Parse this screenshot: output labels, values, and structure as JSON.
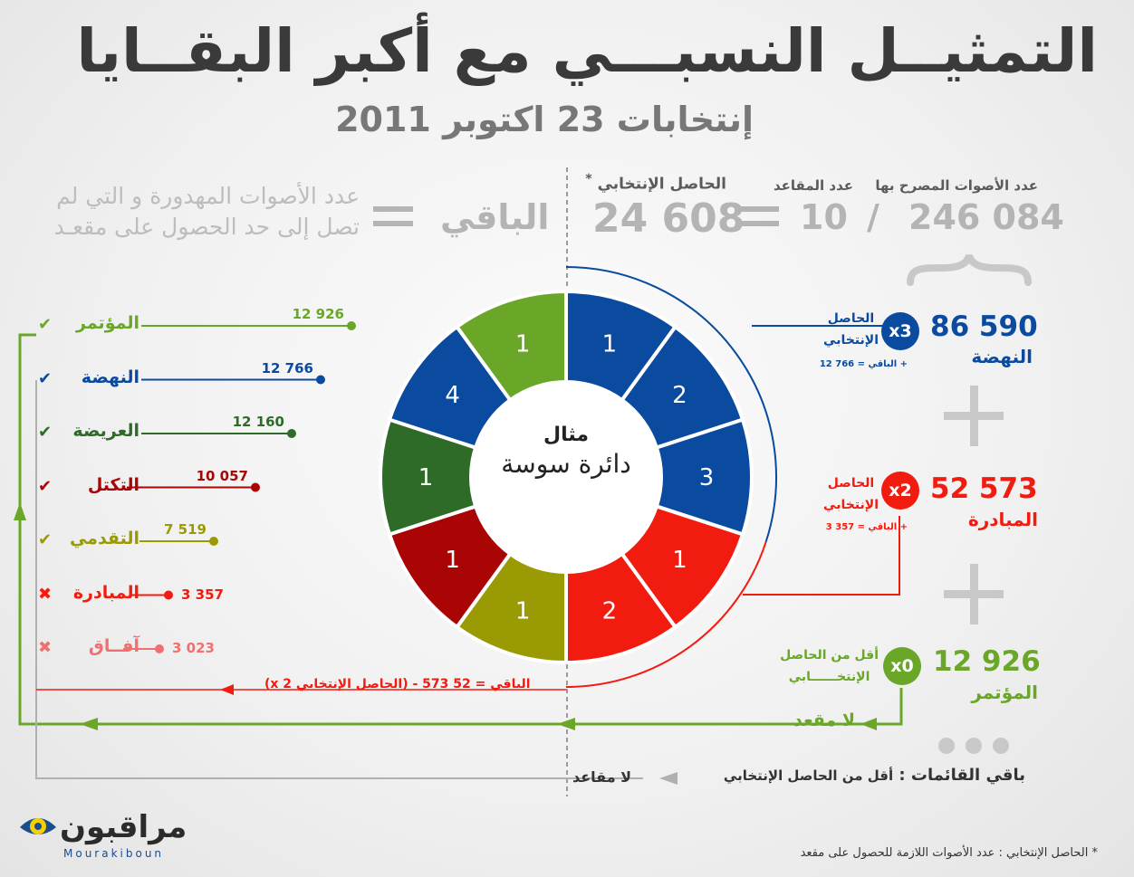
{
  "header": {
    "title": "التمثيــل النسبـــي مع أكبر البقــايا",
    "subtitle": "إنتخابات 23 اكتوبر 2011"
  },
  "formula": {
    "votes_label": "عدد الأصوات المصرح بها",
    "votes_value": "246 084",
    "divide": "/",
    "seats_label": "عدد المقاعد",
    "seats_value": "10",
    "equals": "=",
    "quota_label": "الحاصل الإنتخابي",
    "quota_star": "*",
    "quota_value": "24 608",
    "remainder_label": "الباقي",
    "wasted_line1": "عدد الأصوات المهدورة و التي لم",
    "wasted_line2": "تصل إلى حد الحصول على مقعـد"
  },
  "center": {
    "example": "مثال",
    "district": "دائرة سوسة"
  },
  "colors": {
    "nahda": "#0a4a9f",
    "moubadara": "#f21b0f",
    "moutamar": "#6aa628",
    "aridha": "#2e6a28",
    "takatol": "#aa0505",
    "takadoumi": "#9a9a05",
    "afek": "#f07070"
  },
  "right_parties": [
    {
      "votes": "86 590",
      "name": "النهضة",
      "multiplier": "x3",
      "quota_line1": "الحاصل",
      "quota_line2": "الإنتخابي",
      "remainder_note": "+ الباقي = 766 12"
    },
    {
      "votes": "52 573",
      "name": "المبادرة",
      "multiplier": "x2",
      "quota_line1": "الحاصل",
      "quota_line2": "الإنتخابي",
      "remainder_note": "+ الباقي = 357 3"
    },
    {
      "votes": "12 926",
      "name": "المؤتمر",
      "multiplier": "x0",
      "quota_line1": "أقل من الحاصل",
      "quota_line2": "الإنتخــــــابي",
      "no_seat": "لا مقعد"
    }
  ],
  "plus": "+",
  "ellipsis": "•••",
  "left_ranking": [
    {
      "name": "المؤتمر",
      "value": "12 926",
      "mark": "✔"
    },
    {
      "name": "النهضة",
      "value": "12 766",
      "mark": "✔"
    },
    {
      "name": "العريضة",
      "value": "12 160",
      "mark": "✔"
    },
    {
      "name": "التكتل",
      "value": "10 057",
      "mark": "✔"
    },
    {
      "name": "التقدمي",
      "value": "7 519",
      "mark": "✔"
    },
    {
      "name": "المبادرة",
      "value": "3 357",
      "mark": "✖"
    },
    {
      "name": "آفــاق",
      "value": "3 023",
      "mark": "✖"
    }
  ],
  "calc_note": {
    "label": "الباقي =",
    "value": "52 573",
    "rest": "- (الحاصل الإنتخابي x 2)"
  },
  "remaining_lists": {
    "label": "باقي القائمات",
    "colon": ":",
    "condition": "أقل من الحاصل الإنتخابي",
    "result": "لا مقاعد"
  },
  "footnote": "* الحاصل الإنتخابي : عدد الأصوات اللازمة للحصول على مقعد",
  "logo": {
    "name": "مراقبون",
    "latin": "Mourakiboun"
  },
  "chart_data": {
    "type": "pie",
    "title": "دائرة سوسة",
    "segments": [
      {
        "party": "النهضة",
        "label": "1",
        "color": "#0a4a9f"
      },
      {
        "party": "النهضة",
        "label": "2",
        "color": "#0a4a9f"
      },
      {
        "party": "النهضة",
        "label": "3",
        "color": "#0a4a9f"
      },
      {
        "party": "المبادرة",
        "label": "1",
        "color": "#f21b0f"
      },
      {
        "party": "المبادرة",
        "label": "2",
        "color": "#f21b0f"
      },
      {
        "party": "التقدمي",
        "label": "1",
        "color": "#9a9a05"
      },
      {
        "party": "التكتل",
        "label": "1",
        "color": "#aa0505"
      },
      {
        "party": "العريضة",
        "label": "1",
        "color": "#2e6a28"
      },
      {
        "party": "النهضة",
        "label": "4",
        "color": "#0a4a9f"
      },
      {
        "party": "المؤتمر",
        "label": "1",
        "color": "#6aa628"
      }
    ]
  }
}
